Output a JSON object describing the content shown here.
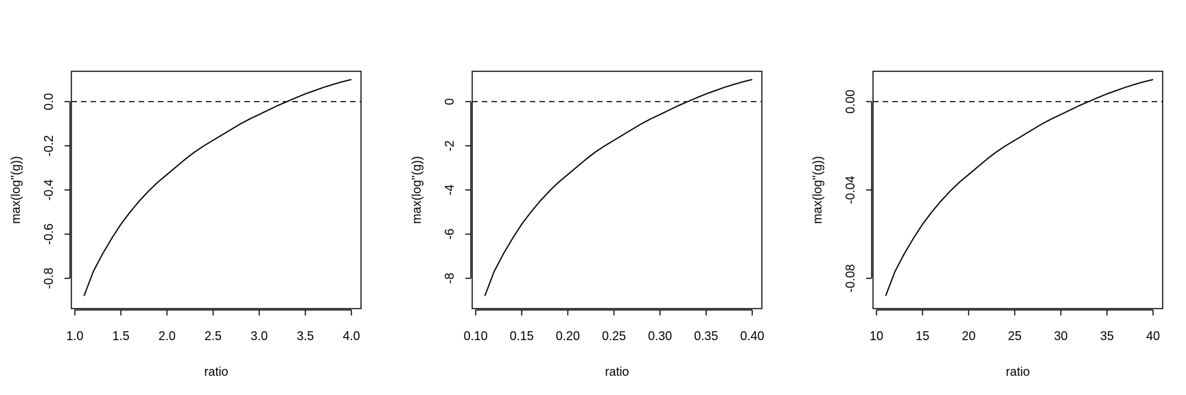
{
  "colors": {
    "line": "#000000",
    "zero_line": "#000000",
    "background": "#ffffff"
  },
  "chart_data": [
    {
      "type": "line",
      "xlabel": "ratio",
      "ylabel": "max(log''(g))",
      "xlim": [
        1.0,
        4.0
      ],
      "ylim": [
        -0.9,
        0.1
      ],
      "xticks": [
        "1.0",
        "1.5",
        "2.0",
        "2.5",
        "3.0",
        "3.5",
        "4.0"
      ],
      "yticks": [
        "-0.8",
        "-0.6",
        "-0.4",
        "-0.2",
        "0.0"
      ],
      "reference_line": {
        "y": 0,
        "style": "dashed"
      },
      "grid": false,
      "series": [
        {
          "x": [
            1.1,
            1.2,
            1.3,
            1.4,
            1.5,
            1.6,
            1.7,
            1.8,
            1.9,
            2.0,
            2.1,
            2.2,
            2.3,
            2.4,
            2.5,
            2.6,
            2.7,
            2.8,
            2.9,
            3.0,
            3.1,
            3.2,
            3.3,
            3.4,
            3.5,
            3.6,
            3.7,
            3.8,
            3.9,
            4.0
          ],
          "y": [
            -0.88,
            -0.77,
            -0.69,
            -0.62,
            -0.555,
            -0.5,
            -0.45,
            -0.405,
            -0.365,
            -0.33,
            -0.295,
            -0.26,
            -0.228,
            -0.2,
            -0.175,
            -0.15,
            -0.125,
            -0.1,
            -0.078,
            -0.058,
            -0.038,
            -0.018,
            0.0,
            0.018,
            0.035,
            0.05,
            0.065,
            0.078,
            0.09,
            0.1
          ]
        }
      ]
    },
    {
      "type": "line",
      "xlabel": "ratio",
      "ylabel": "max(log''(g))",
      "xlim": [
        0.1,
        0.4
      ],
      "ylim": [
        -9,
        1
      ],
      "xticks": [
        "0.10",
        "0.15",
        "0.20",
        "0.25",
        "0.30",
        "0.35",
        "0.40"
      ],
      "yticks": [
        "-8",
        "-6",
        "-4",
        "-2",
        "0"
      ],
      "reference_line": {
        "y": 0,
        "style": "dashed"
      },
      "grid": false,
      "series": [
        {
          "x": [
            0.11,
            0.12,
            0.13,
            0.14,
            0.15,
            0.16,
            0.17,
            0.18,
            0.19,
            0.2,
            0.21,
            0.22,
            0.23,
            0.24,
            0.25,
            0.26,
            0.27,
            0.28,
            0.29,
            0.3,
            0.31,
            0.32,
            0.33,
            0.34,
            0.35,
            0.36,
            0.37,
            0.38,
            0.39,
            0.4
          ],
          "y": [
            -8.8,
            -7.7,
            -6.9,
            -6.2,
            -5.55,
            -5.0,
            -4.5,
            -4.05,
            -3.65,
            -3.3,
            -2.95,
            -2.6,
            -2.28,
            -2.0,
            -1.75,
            -1.5,
            -1.25,
            -1.0,
            -0.78,
            -0.58,
            -0.38,
            -0.18,
            0.0,
            0.18,
            0.35,
            0.5,
            0.65,
            0.78,
            0.9,
            1.0
          ]
        }
      ]
    },
    {
      "type": "line",
      "xlabel": "ratio",
      "ylabel": "max(log''(g))",
      "xlim": [
        10,
        40
      ],
      "ylim": [
        -0.09,
        0.01
      ],
      "xticks": [
        "10",
        "15",
        "20",
        "25",
        "30",
        "35",
        "40"
      ],
      "yticks": [
        "-0.08",
        "-0.04",
        "0.00"
      ],
      "reference_line": {
        "y": 0,
        "style": "dashed"
      },
      "grid": false,
      "series": [
        {
          "x": [
            11,
            12,
            13,
            14,
            15,
            16,
            17,
            18,
            19,
            20,
            21,
            22,
            23,
            24,
            25,
            26,
            27,
            28,
            29,
            30,
            31,
            32,
            33,
            34,
            35,
            36,
            37,
            38,
            39,
            40
          ],
          "y": [
            -0.088,
            -0.077,
            -0.069,
            -0.062,
            -0.0555,
            -0.05,
            -0.045,
            -0.0405,
            -0.0365,
            -0.033,
            -0.0295,
            -0.026,
            -0.0228,
            -0.02,
            -0.0175,
            -0.015,
            -0.0125,
            -0.01,
            -0.0078,
            -0.0058,
            -0.0038,
            -0.0018,
            0.0,
            0.0018,
            0.0035,
            0.005,
            0.0065,
            0.0078,
            0.009,
            0.01
          ]
        }
      ]
    }
  ]
}
